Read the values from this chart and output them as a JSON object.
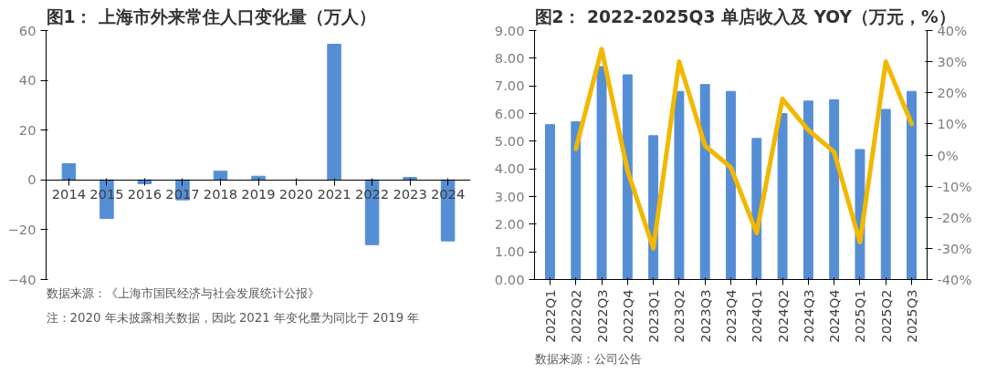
{
  "chart_data": [
    {
      "type": "bar",
      "title": "图1：  上海市外来常住人口变化量（万人）",
      "categories": [
        "2014",
        "2015",
        "2016",
        "2017",
        "2018",
        "2019",
        "2020",
        "2021",
        "2022",
        "2023",
        "2024"
      ],
      "series": [
        {
          "color": "#558ed5",
          "values": [
            6.5,
            -15.5,
            -1.5,
            -8,
            3.5,
            1.5,
            null,
            54.5,
            -26,
            1,
            -24.5
          ]
        }
      ],
      "ylim": [
        -40,
        60
      ],
      "yticks": [
        -40,
        -20,
        0,
        20,
        40,
        60
      ],
      "grid": false,
      "annotations": [
        "数据来源：《上海市国民经济与社会发展统计公报》",
        "注：2020 年未披露相关数据，因此 2021 年变化量为同比于 2019 年"
      ]
    },
    {
      "type": "bar",
      "title": "图2：  2022-2025Q3 单店收入及 YOY（万元，%）",
      "categories": [
        "2022Q1",
        "2022Q2",
        "2022Q3",
        "2022Q4",
        "2023Q1",
        "2023Q2",
        "2023Q3",
        "2023Q4",
        "2024Q1",
        "2024Q2",
        "2024Q3",
        "2024Q4",
        "2025Q1",
        "2025Q2",
        "2025Q3"
      ],
      "series": [
        {
          "color": "#558ed5",
          "values": [
            5.6,
            5.7,
            7.7,
            7.4,
            5.2,
            6.8,
            7.05,
            6.8,
            5.1,
            6.0,
            6.45,
            6.5,
            4.7,
            6.15,
            6.8
          ]
        },
        {
          "type": "line",
          "axis": "y2",
          "color": "#f2b800",
          "values": [
            null,
            2,
            34,
            -5,
            -30,
            30,
            3,
            -4,
            -25,
            18,
            8,
            1,
            -28,
            30,
            10
          ]
        }
      ],
      "ylim": [
        0,
        9
      ],
      "yticks": [
        {
          "value": 0,
          "label": "0.00"
        },
        {
          "value": 1,
          "label": "1.00"
        },
        {
          "value": 2,
          "label": "2.00"
        },
        {
          "value": 3,
          "label": "3.00"
        },
        {
          "value": 4,
          "label": "4.00"
        },
        {
          "value": 5,
          "label": "5.00"
        },
        {
          "value": 6,
          "label": "6.00"
        },
        {
          "value": 7,
          "label": "7.00"
        },
        {
          "value": 8,
          "label": "8.00"
        },
        {
          "value": 9,
          "label": "9.00"
        }
      ],
      "y2lim": [
        -40,
        40
      ],
      "y2ticks": [
        {
          "value": -40,
          "label": "-40%"
        },
        {
          "value": -30,
          "label": "-30%"
        },
        {
          "value": -20,
          "label": "-20%"
        },
        {
          "value": -10,
          "label": "-10%"
        },
        {
          "value": 0,
          "label": "0%"
        },
        {
          "value": 10,
          "label": "10%"
        },
        {
          "value": 20,
          "label": "20%"
        },
        {
          "value": 30,
          "label": "30%"
        },
        {
          "value": 40,
          "label": "40%"
        }
      ],
      "grid": false,
      "annotations": [
        "数据来源：公司公告"
      ]
    }
  ]
}
